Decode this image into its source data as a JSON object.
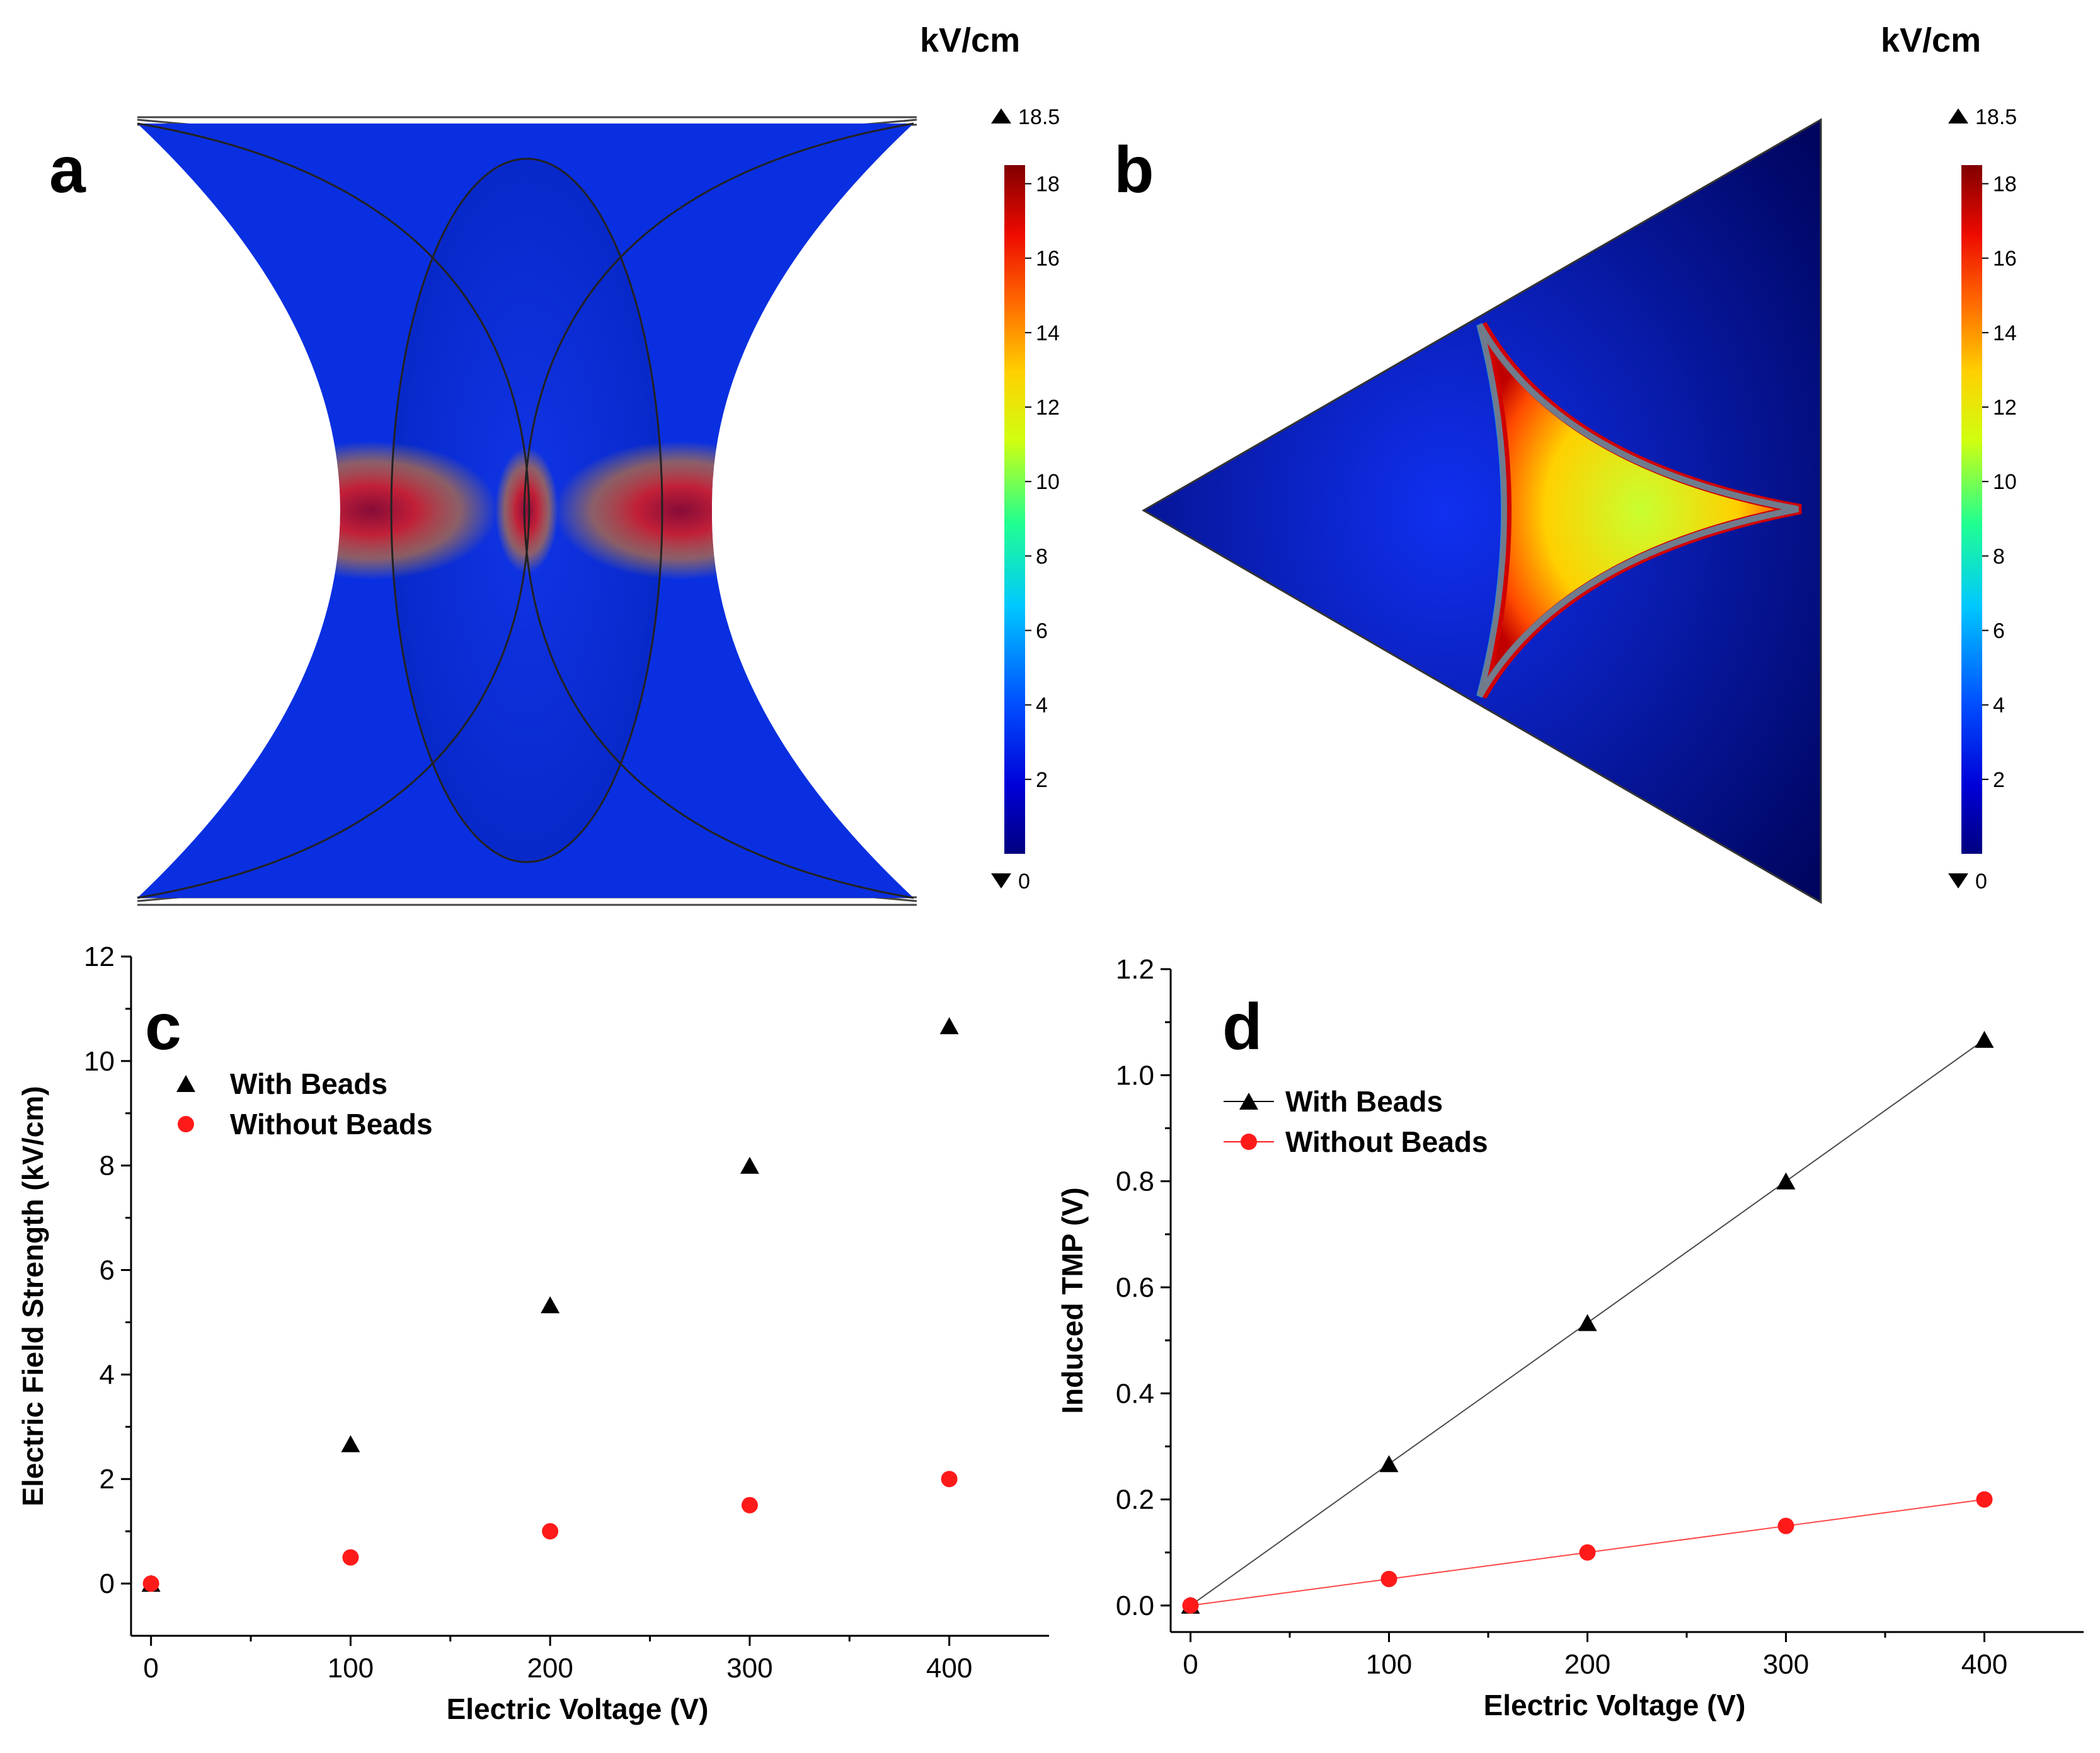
{
  "panels": {
    "a": {
      "label": "a",
      "unit": "kV/cm",
      "cb_max_marker": "18.5",
      "cb_min_marker": "0",
      "cb_ticks": [
        "2",
        "4",
        "6",
        "8",
        "10",
        "12",
        "14",
        "16",
        "18"
      ]
    },
    "b": {
      "label": "b",
      "unit": "kV/cm",
      "cb_max_marker": "18.5",
      "cb_min_marker": "0",
      "cb_ticks": [
        "2",
        "4",
        "6",
        "8",
        "10",
        "12",
        "14",
        "16",
        "18"
      ]
    },
    "c": {
      "label": "c"
    },
    "d": {
      "label": "d"
    }
  },
  "colors": {
    "with_beads": "#000000",
    "without_beads": "#ff1a1a",
    "field_low": "#00007f",
    "field_high": "#8b0000"
  },
  "chart_data": [
    {
      "id": "c",
      "type": "scatter",
      "title": "",
      "xlabel": "Electric Voltage (V)",
      "ylabel": "Electric Field Strength (kV/cm)",
      "xlim": [
        -10,
        450
      ],
      "ylim": [
        -1,
        12
      ],
      "xticks": [
        "0",
        "100",
        "200",
        "300",
        "400"
      ],
      "yticks": [
        "0",
        "2",
        "4",
        "6",
        "8",
        "10",
        "12"
      ],
      "legend_position": "top-left",
      "lines": false,
      "series": [
        {
          "name": "With Beads",
          "marker": "triangle",
          "x": [
            0,
            100,
            200,
            300,
            400
          ],
          "y": [
            0,
            2.67,
            5.33,
            8.0,
            10.67
          ]
        },
        {
          "name": "Without Beads",
          "marker": "circle",
          "x": [
            0,
            100,
            200,
            300,
            400
          ],
          "y": [
            0,
            0.5,
            1.0,
            1.5,
            2.0
          ]
        }
      ]
    },
    {
      "id": "d",
      "type": "line",
      "title": "",
      "xlabel": "Electric Voltage (V)",
      "ylabel": "Induced TMP (V)",
      "xlim": [
        -10,
        450
      ],
      "ylim": [
        -0.05,
        1.2
      ],
      "xticks": [
        "0",
        "100",
        "200",
        "300",
        "400"
      ],
      "yticks": [
        "0.0",
        "0.2",
        "0.4",
        "0.6",
        "0.8",
        "1.0",
        "1.2"
      ],
      "legend_position": "top-left",
      "lines": true,
      "series": [
        {
          "name": "With Beads",
          "marker": "triangle",
          "x": [
            0,
            100,
            200,
            300,
            400
          ],
          "y": [
            0,
            0.267,
            0.533,
            0.8,
            1.067
          ]
        },
        {
          "name": "Without Beads",
          "marker": "circle",
          "x": [
            0,
            100,
            200,
            300,
            400
          ],
          "y": [
            0,
            0.05,
            0.1,
            0.15,
            0.2
          ]
        }
      ]
    }
  ]
}
